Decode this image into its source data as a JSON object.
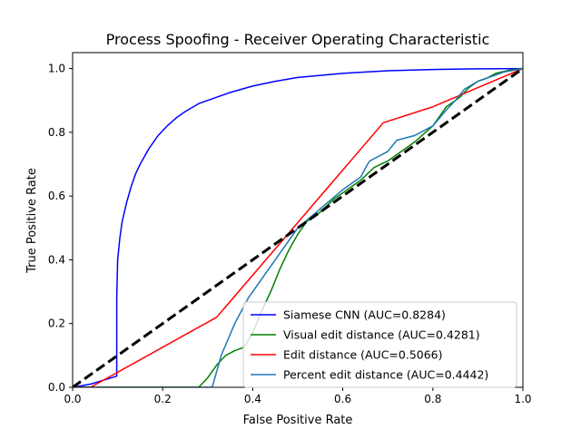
{
  "chart_data": {
    "type": "line",
    "title": "Process Spoofing - Receiver Operating Characteristic",
    "xlabel": "False Positive Rate",
    "ylabel": "True Positive Rate",
    "xlim": [
      0,
      1
    ],
    "ylim": [
      0,
      1.05
    ],
    "xticks": [
      0.0,
      0.2,
      0.4,
      0.6,
      0.8,
      1.0
    ],
    "xtick_labels": [
      "0.0",
      "0.2",
      "0.4",
      "0.6",
      "0.8",
      "1.0"
    ],
    "yticks": [
      0.0,
      0.2,
      0.4,
      0.6,
      0.8,
      1.0
    ],
    "ytick_labels": [
      "0.0",
      "0.2",
      "0.4",
      "0.6",
      "0.8",
      "1.0"
    ],
    "grid": false,
    "legend_position": "lower-right",
    "series": [
      {
        "name": "Siamese CNN (AUC=0.8284)",
        "color": "#0000ff",
        "x": [
          0,
          0.04,
          0.098,
          0.098,
          0.1,
          0.105,
          0.11,
          0.12,
          0.13,
          0.14,
          0.15,
          0.17,
          0.19,
          0.21,
          0.23,
          0.25,
          0.28,
          0.31,
          0.35,
          0.4,
          0.45,
          0.5,
          0.6,
          0.7,
          0.8,
          0.9,
          1.0
        ],
        "y": [
          0,
          0.01,
          0.035,
          0.28,
          0.4,
          0.47,
          0.52,
          0.58,
          0.63,
          0.67,
          0.7,
          0.75,
          0.79,
          0.82,
          0.845,
          0.865,
          0.89,
          0.905,
          0.925,
          0.945,
          0.96,
          0.972,
          0.985,
          0.993,
          0.997,
          0.999,
          1.0
        ],
        "linestyle": "solid"
      },
      {
        "name": "Visual edit distance (AUC=0.4281)",
        "color": "#008000",
        "x": [
          0,
          0.28,
          0.3,
          0.32,
          0.34,
          0.36,
          0.38,
          0.4,
          0.42,
          0.44,
          0.46,
          0.48,
          0.5,
          0.52,
          0.55,
          0.58,
          0.61,
          0.64,
          0.67,
          0.7,
          0.73,
          0.76,
          0.8,
          0.83,
          0.86,
          0.88,
          0.9,
          0.92,
          0.94,
          0.97,
          1.0
        ],
        "y": [
          0,
          0.0,
          0.03,
          0.07,
          0.1,
          0.115,
          0.125,
          0.17,
          0.24,
          0.3,
          0.37,
          0.43,
          0.48,
          0.52,
          0.55,
          0.59,
          0.62,
          0.65,
          0.69,
          0.71,
          0.74,
          0.77,
          0.82,
          0.88,
          0.91,
          0.94,
          0.96,
          0.97,
          0.985,
          0.995,
          1.0
        ],
        "linestyle": "solid"
      },
      {
        "name": "Edit distance (AUC=0.5066)",
        "color": "#ff0000",
        "x": [
          0,
          0.04,
          0.32,
          0.69,
          0.8,
          1.0
        ],
        "y": [
          0,
          0.0,
          0.22,
          0.83,
          0.88,
          1.0
        ],
        "linestyle": "solid"
      },
      {
        "name": "Percent edit distance (AUC=0.4442)",
        "color": "#1f77b4",
        "x": [
          0,
          0.31,
          0.33,
          0.36,
          0.39,
          0.41,
          0.45,
          0.5,
          0.55,
          0.6,
          0.64,
          0.655,
          0.66,
          0.7,
          0.72,
          0.76,
          0.8,
          0.83,
          0.85,
          0.87,
          0.9,
          0.93,
          0.96,
          1.0
        ],
        "y": [
          0,
          0.0,
          0.1,
          0.2,
          0.28,
          0.32,
          0.4,
          0.5,
          0.56,
          0.62,
          0.66,
          0.7,
          0.71,
          0.74,
          0.775,
          0.79,
          0.82,
          0.87,
          0.9,
          0.935,
          0.96,
          0.975,
          0.99,
          1.0
        ],
        "linestyle": "solid"
      },
      {
        "name": "",
        "color": "#000000",
        "x": [
          0,
          1
        ],
        "y": [
          0,
          1
        ],
        "linestyle": "dashed",
        "show_in_legend": false
      }
    ]
  }
}
